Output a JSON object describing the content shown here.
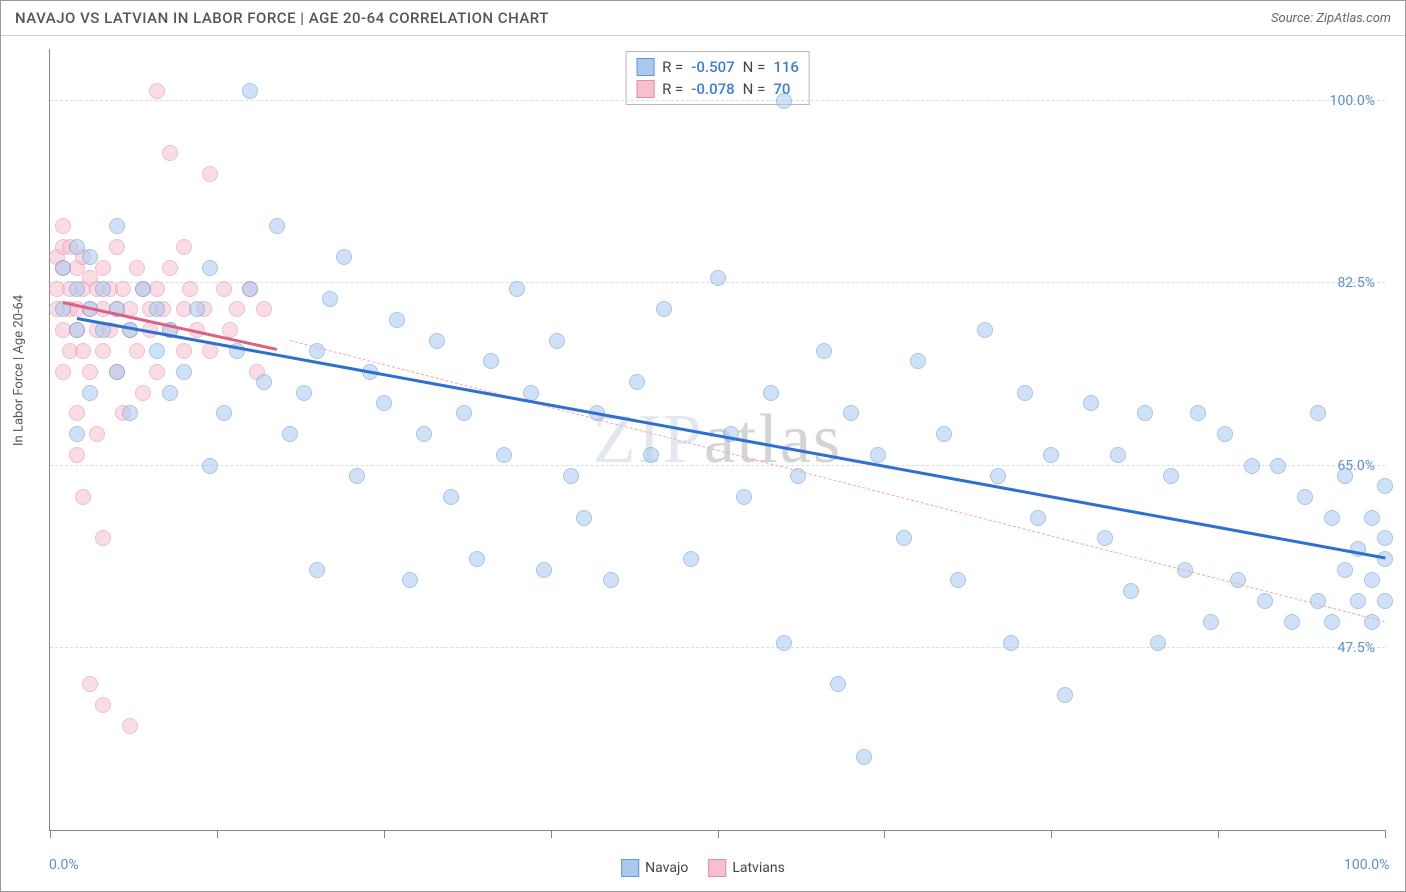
{
  "header": {
    "title": "NAVAJO VS LATVIAN IN LABOR FORCE | AGE 20-64 CORRELATION CHART",
    "source": "Source: ZipAtlas.com"
  },
  "watermark": {
    "part1": "ZIP",
    "part2": "atlas"
  },
  "chart": {
    "type": "scatter",
    "background_color": "#ffffff",
    "grid_color": "#dddddd",
    "axis_color": "#888888",
    "ylabel": "In Labor Force | Age 20-64",
    "label_fontsize": 13,
    "xlim": [
      0,
      100
    ],
    "ylim": [
      30,
      105
    ],
    "xtick_positions": [
      0,
      12.5,
      25,
      37.5,
      50,
      62.5,
      75,
      87.5,
      100
    ],
    "ytick_labels": [
      {
        "y": 100,
        "label": "100.0%"
      },
      {
        "y": 82.5,
        "label": "82.5%"
      },
      {
        "y": 65,
        "label": "65.0%"
      },
      {
        "y": 47.5,
        "label": "47.5%"
      }
    ],
    "xaxis_labels": [
      {
        "x": 0,
        "label": "0.0%"
      },
      {
        "x": 100,
        "label": "100.0%"
      }
    ],
    "point_radius": 8,
    "point_opacity": 0.55,
    "point_stroke_width": 1
  },
  "series": {
    "navajo": {
      "label": "Navajo",
      "fill_color": "#a9c9ef",
      "stroke_color": "#6199d8",
      "trend_color": "#2e6fd0",
      "trend_dash_color": "#f2a6b8",
      "R": "-0.507",
      "N": "116",
      "trend": {
        "x1": 2,
        "y1": 79,
        "x2": 100,
        "y2": 56,
        "width": 3
      },
      "trend_dash": {
        "x1": 18,
        "y1": 77,
        "x2": 100,
        "y2": 50
      },
      "points": [
        [
          1,
          80
        ],
        [
          1,
          84
        ],
        [
          2,
          68
        ],
        [
          2,
          78
        ],
        [
          2,
          82
        ],
        [
          2,
          86
        ],
        [
          3,
          72
        ],
        [
          3,
          80
        ],
        [
          3,
          85
        ],
        [
          4,
          78
        ],
        [
          4,
          82
        ],
        [
          5,
          74
        ],
        [
          5,
          80
        ],
        [
          5,
          88
        ],
        [
          6,
          70
        ],
        [
          6,
          78
        ],
        [
          7,
          82
        ],
        [
          8,
          76
        ],
        [
          8,
          80
        ],
        [
          9,
          72
        ],
        [
          9,
          78
        ],
        [
          10,
          74
        ],
        [
          11,
          80
        ],
        [
          12,
          65
        ],
        [
          12,
          84
        ],
        [
          13,
          70
        ],
        [
          14,
          76
        ],
        [
          15,
          101
        ],
        [
          15,
          82
        ],
        [
          16,
          73
        ],
        [
          17,
          88
        ],
        [
          18,
          68
        ],
        [
          19,
          72
        ],
        [
          20,
          55
        ],
        [
          20,
          76
        ],
        [
          21,
          81
        ],
        [
          22,
          85
        ],
        [
          23,
          64
        ],
        [
          24,
          74
        ],
        [
          25,
          71
        ],
        [
          26,
          79
        ],
        [
          27,
          54
        ],
        [
          28,
          68
        ],
        [
          29,
          77
        ],
        [
          30,
          62
        ],
        [
          31,
          70
        ],
        [
          32,
          56
        ],
        [
          33,
          75
        ],
        [
          34,
          66
        ],
        [
          35,
          82
        ],
        [
          36,
          72
        ],
        [
          37,
          55
        ],
        [
          38,
          77
        ],
        [
          39,
          64
        ],
        [
          40,
          60
        ],
        [
          41,
          70
        ],
        [
          42,
          54
        ],
        [
          44,
          73
        ],
        [
          45,
          66
        ],
        [
          46,
          80
        ],
        [
          48,
          56
        ],
        [
          50,
          83
        ],
        [
          51,
          68
        ],
        [
          52,
          62
        ],
        [
          54,
          72
        ],
        [
          55,
          100
        ],
        [
          55,
          48
        ],
        [
          56,
          64
        ],
        [
          58,
          76
        ],
        [
          59,
          44
        ],
        [
          60,
          70
        ],
        [
          61,
          37
        ],
        [
          62,
          66
        ],
        [
          64,
          58
        ],
        [
          65,
          75
        ],
        [
          67,
          68
        ],
        [
          68,
          54
        ],
        [
          70,
          78
        ],
        [
          71,
          64
        ],
        [
          72,
          48
        ],
        [
          73,
          72
        ],
        [
          74,
          60
        ],
        [
          75,
          66
        ],
        [
          76,
          43
        ],
        [
          78,
          71
        ],
        [
          79,
          58
        ],
        [
          80,
          66
        ],
        [
          81,
          53
        ],
        [
          82,
          70
        ],
        [
          83,
          48
        ],
        [
          84,
          64
        ],
        [
          85,
          55
        ],
        [
          86,
          70
        ],
        [
          87,
          50
        ],
        [
          88,
          68
        ],
        [
          89,
          54
        ],
        [
          90,
          65
        ],
        [
          91,
          52
        ],
        [
          92,
          65
        ],
        [
          93,
          50
        ],
        [
          94,
          62
        ],
        [
          95,
          52
        ],
        [
          95,
          70
        ],
        [
          96,
          60
        ],
        [
          96,
          50
        ],
        [
          97,
          64
        ],
        [
          97,
          55
        ],
        [
          98,
          57
        ],
        [
          98,
          52
        ],
        [
          99,
          60
        ],
        [
          99,
          54
        ],
        [
          99,
          50
        ],
        [
          100,
          58
        ],
        [
          100,
          52
        ],
        [
          100,
          63
        ],
        [
          100,
          56
        ]
      ]
    },
    "latvians": {
      "label": "Latvians",
      "fill_color": "#f6c0ce",
      "stroke_color": "#e88aa3",
      "trend_color": "#e06083",
      "R": "-0.078",
      "N": "70",
      "trend": {
        "x1": 1,
        "y1": 80.5,
        "x2": 17,
        "y2": 76,
        "width": 3
      },
      "points": [
        [
          0.5,
          82
        ],
        [
          0.5,
          85
        ],
        [
          0.5,
          80
        ],
        [
          1,
          84
        ],
        [
          1,
          86
        ],
        [
          1,
          78
        ],
        [
          1,
          88
        ],
        [
          1,
          74
        ],
        [
          1.5,
          82
        ],
        [
          1.5,
          80
        ],
        [
          1.5,
          86
        ],
        [
          1.5,
          76
        ],
        [
          2,
          84
        ],
        [
          2,
          80
        ],
        [
          2,
          78
        ],
        [
          2,
          66
        ],
        [
          2,
          70
        ],
        [
          2.5,
          82
        ],
        [
          2.5,
          85
        ],
        [
          2.5,
          76
        ],
        [
          2.5,
          62
        ],
        [
          3,
          80
        ],
        [
          3,
          83
        ],
        [
          3,
          74
        ],
        [
          3,
          44
        ],
        [
          3.5,
          82
        ],
        [
          3.5,
          78
        ],
        [
          3.5,
          68
        ],
        [
          4,
          84
        ],
        [
          4,
          80
        ],
        [
          4,
          76
        ],
        [
          4,
          58
        ],
        [
          4,
          42
        ],
        [
          4.5,
          82
        ],
        [
          4.5,
          78
        ],
        [
          5,
          80
        ],
        [
          5,
          74
        ],
        [
          5,
          86
        ],
        [
          5.5,
          82
        ],
        [
          5.5,
          70
        ],
        [
          6,
          80
        ],
        [
          6,
          78
        ],
        [
          6,
          40
        ],
        [
          6.5,
          84
        ],
        [
          6.5,
          76
        ],
        [
          7,
          82
        ],
        [
          7,
          72
        ],
        [
          7.5,
          80
        ],
        [
          7.5,
          78
        ],
        [
          8,
          101
        ],
        [
          8,
          82
        ],
        [
          8,
          74
        ],
        [
          8.5,
          80
        ],
        [
          9,
          78
        ],
        [
          9,
          84
        ],
        [
          9,
          95
        ],
        [
          10,
          80
        ],
        [
          10,
          76
        ],
        [
          10,
          86
        ],
        [
          10.5,
          82
        ],
        [
          11,
          78
        ],
        [
          11.5,
          80
        ],
        [
          12,
          93
        ],
        [
          12,
          76
        ],
        [
          13,
          82
        ],
        [
          13.5,
          78
        ],
        [
          14,
          80
        ],
        [
          15,
          82
        ],
        [
          15.5,
          74
        ],
        [
          16,
          80
        ]
      ]
    }
  },
  "legend": {
    "navajo": "Navajo",
    "latvians": "Latvians"
  },
  "stats_labels": {
    "R": "R =",
    "N": "N ="
  }
}
